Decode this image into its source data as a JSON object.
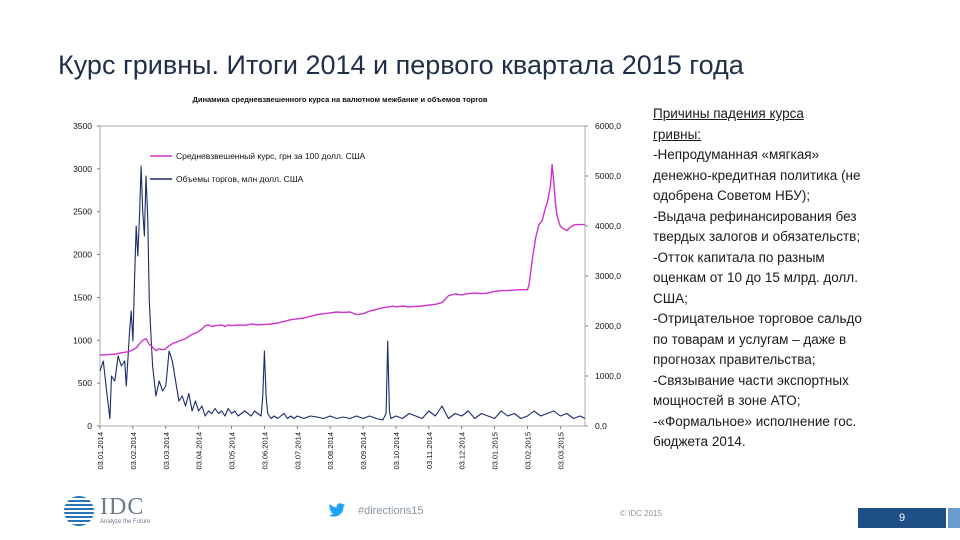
{
  "slide": {
    "title": "Курс гривны. Итоги 2014 и первого квартала 2015 года"
  },
  "reasons": {
    "title_lines": [
      "Причины падения курса",
      "гривны:"
    ],
    "lines": [
      "-Непродуманная «мягкая»",
      "денежно-кредитная политика (не",
      "одобрена Советом НБУ);",
      "-Выдача рефинансирования без",
      "твердых залогов и обязательств;",
      "-Отток капитала по разным",
      "оценкам от 10 до 15 млрд. долл.",
      "США;",
      "-Отрицательное торговое сальдо",
      "по товарам и услугам – даже в",
      "прогнозах правительства;",
      "-Связывание части экспортных",
      "мощностей в зоне АТО;",
      "-«Формальное» исполнение гос.",
      "бюджета 2014."
    ]
  },
  "footer": {
    "logo_text": "IDC",
    "logo_tagline": "Analyze the Future",
    "hashtag": "#directions15",
    "copyright": "© IDC 2015",
    "page_number": "9"
  },
  "colors": {
    "rate_line": "#cc33cc",
    "volume_line": "#1a2a6c",
    "title_text": "#1f2f4a",
    "footer_bar": "#1e4f86"
  },
  "chart_data": {
    "type": "line",
    "title": "Динамика средневзвешенного курса на валютном межбанке и объемов торгов",
    "x_tick_labels": [
      "03.01.2014",
      "03.02.2014",
      "03.03.2014",
      "03.04.2014",
      "03.05.2014",
      "03.06.2014",
      "03.07.2014",
      "03.08.2014",
      "03.09.2014",
      "03.10.2014",
      "03.11.2014",
      "03.12.2014",
      "03.01.2015",
      "03.02.2015",
      "03.03.2015"
    ],
    "left_axis": {
      "ylim": [
        0,
        3500
      ],
      "ticks": [
        "0",
        "500",
        "1000",
        "1500",
        "2000",
        "2500",
        "3000",
        "3500"
      ]
    },
    "right_axis": {
      "ylim": [
        0,
        6000
      ],
      "ticks": [
        "0,0",
        "1000,0",
        "2000,0",
        "3000,0",
        "4000,0",
        "5000,0",
        "6000,0"
      ]
    },
    "legend_position": "top-left",
    "series": [
      {
        "name": "Средневзвешенный курс, грн за 100 долл. США",
        "axis": "left",
        "points": [
          [
            0,
            830
          ],
          [
            0.15,
            830
          ],
          [
            0.3,
            835
          ],
          [
            0.5,
            840
          ],
          [
            0.6,
            850
          ],
          [
            0.75,
            860
          ],
          [
            0.9,
            870
          ],
          [
            1.05,
            900
          ],
          [
            1.1,
            910
          ],
          [
            1.2,
            960
          ],
          [
            1.3,
            1000
          ],
          [
            1.4,
            1020
          ],
          [
            1.5,
            950
          ],
          [
            1.6,
            920
          ],
          [
            1.7,
            880
          ],
          [
            1.8,
            900
          ],
          [
            1.9,
            890
          ],
          [
            2.0,
            900
          ],
          [
            2.05,
            920
          ],
          [
            2.2,
            960
          ],
          [
            2.4,
            990
          ],
          [
            2.6,
            1020
          ],
          [
            2.8,
            1070
          ],
          [
            2.95,
            1090
          ],
          [
            3.1,
            1130
          ],
          [
            3.2,
            1170
          ],
          [
            3.3,
            1180
          ],
          [
            3.4,
            1160
          ],
          [
            3.5,
            1170
          ],
          [
            3.6,
            1175
          ],
          [
            3.7,
            1180
          ],
          [
            3.8,
            1160
          ],
          [
            3.9,
            1180
          ],
          [
            4.0,
            1170
          ],
          [
            4.2,
            1180
          ],
          [
            4.4,
            1175
          ],
          [
            4.6,
            1190
          ],
          [
            4.8,
            1180
          ],
          [
            5.0,
            1185
          ],
          [
            5.2,
            1190
          ],
          [
            5.4,
            1200
          ],
          [
            5.6,
            1220
          ],
          [
            5.8,
            1240
          ],
          [
            6.0,
            1250
          ],
          [
            6.2,
            1260
          ],
          [
            6.4,
            1280
          ],
          [
            6.6,
            1300
          ],
          [
            6.8,
            1310
          ],
          [
            7.0,
            1320
          ],
          [
            7.2,
            1330
          ],
          [
            7.4,
            1325
          ],
          [
            7.6,
            1330
          ],
          [
            7.8,
            1300
          ],
          [
            8.0,
            1310
          ],
          [
            8.2,
            1340
          ],
          [
            8.4,
            1360
          ],
          [
            8.6,
            1380
          ],
          [
            8.8,
            1390
          ],
          [
            8.9,
            1400
          ],
          [
            9.0,
            1390
          ],
          [
            9.2,
            1400
          ],
          [
            9.4,
            1390
          ],
          [
            9.6,
            1395
          ],
          [
            9.8,
            1400
          ],
          [
            10.0,
            1410
          ],
          [
            10.2,
            1420
          ],
          [
            10.4,
            1440
          ],
          [
            10.5,
            1480
          ],
          [
            10.6,
            1520
          ],
          [
            10.8,
            1540
          ],
          [
            11.0,
            1530
          ],
          [
            11.2,
            1545
          ],
          [
            11.4,
            1550
          ],
          [
            11.6,
            1545
          ],
          [
            11.8,
            1550
          ],
          [
            12.0,
            1570
          ],
          [
            12.2,
            1580
          ],
          [
            12.4,
            1580
          ],
          [
            12.6,
            1585
          ],
          [
            12.8,
            1590
          ],
          [
            13.0,
            1590
          ],
          [
            13.05,
            1650
          ],
          [
            13.15,
            1950
          ],
          [
            13.25,
            2200
          ],
          [
            13.35,
            2350
          ],
          [
            13.45,
            2400
          ],
          [
            13.55,
            2550
          ],
          [
            13.6,
            2600
          ],
          [
            13.65,
            2700
          ],
          [
            13.7,
            2800
          ],
          [
            13.75,
            3050
          ],
          [
            13.8,
            2850
          ],
          [
            13.85,
            2600
          ],
          [
            13.9,
            2450
          ],
          [
            14.0,
            2330
          ],
          [
            14.1,
            2300
          ],
          [
            14.2,
            2280
          ],
          [
            14.3,
            2320
          ],
          [
            14.45,
            2350
          ],
          [
            14.6,
            2350
          ],
          [
            14.75,
            2350
          ]
        ]
      },
      {
        "name": "Объемы торгов, млн долл. США",
        "axis": "right",
        "points": [
          [
            0,
            1100
          ],
          [
            0.1,
            1300
          ],
          [
            0.2,
            700
          ],
          [
            0.3,
            150
          ],
          [
            0.35,
            1000
          ],
          [
            0.45,
            900
          ],
          [
            0.55,
            1400
          ],
          [
            0.65,
            1200
          ],
          [
            0.75,
            1300
          ],
          [
            0.8,
            800
          ],
          [
            0.9,
            1900
          ],
          [
            0.95,
            2300
          ],
          [
            1.0,
            1700
          ],
          [
            1.05,
            2900
          ],
          [
            1.1,
            4000
          ],
          [
            1.15,
            3400
          ],
          [
            1.2,
            4200
          ],
          [
            1.25,
            5200
          ],
          [
            1.3,
            4300
          ],
          [
            1.35,
            3800
          ],
          [
            1.4,
            5000
          ],
          [
            1.45,
            4200
          ],
          [
            1.5,
            2500
          ],
          [
            1.55,
            1800
          ],
          [
            1.6,
            1200
          ],
          [
            1.7,
            600
          ],
          [
            1.8,
            900
          ],
          [
            1.9,
            700
          ],
          [
            2.0,
            800
          ],
          [
            2.1,
            1500
          ],
          [
            2.2,
            1300
          ],
          [
            2.3,
            900
          ],
          [
            2.4,
            500
          ],
          [
            2.5,
            600
          ],
          [
            2.6,
            400
          ],
          [
            2.7,
            650
          ],
          [
            2.8,
            300
          ],
          [
            2.9,
            500
          ],
          [
            3.0,
            300
          ],
          [
            3.1,
            400
          ],
          [
            3.2,
            200
          ],
          [
            3.3,
            300
          ],
          [
            3.4,
            250
          ],
          [
            3.5,
            350
          ],
          [
            3.6,
            250
          ],
          [
            3.7,
            300
          ],
          [
            3.8,
            200
          ],
          [
            3.9,
            350
          ],
          [
            4.0,
            250
          ],
          [
            4.1,
            300
          ],
          [
            4.2,
            200
          ],
          [
            4.3,
            250
          ],
          [
            4.4,
            300
          ],
          [
            4.5,
            250
          ],
          [
            4.6,
            200
          ],
          [
            4.7,
            300
          ],
          [
            4.8,
            250
          ],
          [
            4.9,
            200
          ],
          [
            4.95,
            600
          ],
          [
            5.0,
            1500
          ],
          [
            5.05,
            600
          ],
          [
            5.1,
            250
          ],
          [
            5.2,
            150
          ],
          [
            5.3,
            200
          ],
          [
            5.4,
            150
          ],
          [
            5.5,
            200
          ],
          [
            5.6,
            250
          ],
          [
            5.7,
            150
          ],
          [
            5.8,
            200
          ],
          [
            5.9,
            150
          ],
          [
            6.0,
            200
          ],
          [
            6.2,
            150
          ],
          [
            6.4,
            200
          ],
          [
            6.6,
            180
          ],
          [
            6.8,
            150
          ],
          [
            7.0,
            200
          ],
          [
            7.2,
            150
          ],
          [
            7.4,
            180
          ],
          [
            7.6,
            150
          ],
          [
            7.8,
            200
          ],
          [
            8.0,
            150
          ],
          [
            8.2,
            200
          ],
          [
            8.4,
            150
          ],
          [
            8.6,
            120
          ],
          [
            8.7,
            250
          ],
          [
            8.75,
            1700
          ],
          [
            8.8,
            300
          ],
          [
            8.85,
            150
          ],
          [
            9.0,
            200
          ],
          [
            9.2,
            150
          ],
          [
            9.4,
            250
          ],
          [
            9.6,
            200
          ],
          [
            9.8,
            150
          ],
          [
            10.0,
            300
          ],
          [
            10.2,
            200
          ],
          [
            10.4,
            400
          ],
          [
            10.6,
            150
          ],
          [
            10.8,
            250
          ],
          [
            11.0,
            200
          ],
          [
            11.2,
            300
          ],
          [
            11.4,
            150
          ],
          [
            11.6,
            250
          ],
          [
            11.8,
            200
          ],
          [
            12.0,
            150
          ],
          [
            12.2,
            300
          ],
          [
            12.4,
            200
          ],
          [
            12.6,
            250
          ],
          [
            12.8,
            150
          ],
          [
            13.0,
            200
          ],
          [
            13.2,
            300
          ],
          [
            13.4,
            200
          ],
          [
            13.6,
            250
          ],
          [
            13.8,
            300
          ],
          [
            14.0,
            200
          ],
          [
            14.2,
            250
          ],
          [
            14.4,
            150
          ],
          [
            14.6,
            200
          ],
          [
            14.75,
            150
          ]
        ]
      }
    ]
  }
}
